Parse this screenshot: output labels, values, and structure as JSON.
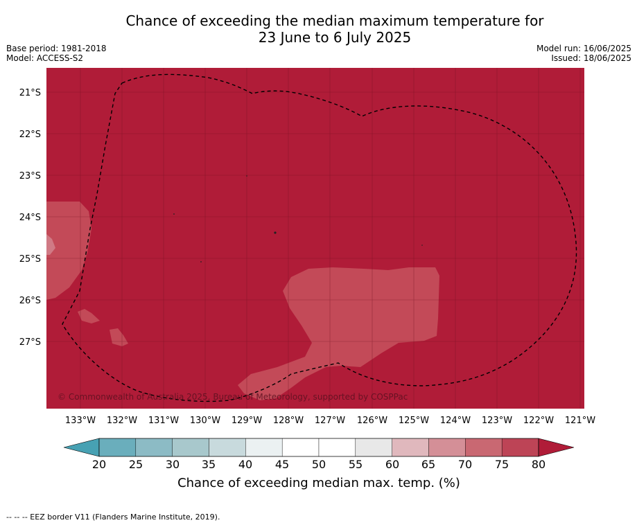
{
  "title_line1": "Chance of exceeding the median maximum temperature for",
  "title_line2": "23 June to 6 July 2025",
  "meta": {
    "base_period": "Base period: 1981-2018",
    "model": "Model: ACCESS-S2",
    "model_run": "Model run: 16/06/2025",
    "issued": "Issued: 18/06/2025"
  },
  "map": {
    "lat_labels": [
      "21°S",
      "22°S",
      "23°S",
      "24°S",
      "25°S",
      "26°S",
      "27°S"
    ],
    "lon_labels": [
      "133°W",
      "132°W",
      "131°W",
      "130°W",
      "129°W",
      "128°W",
      "127°W",
      "126°W",
      "125°W",
      "124°W",
      "123°W",
      "122°W",
      "121°W"
    ],
    "copyright": "© Commonwealth of Australia 2025, Bureau of Meteorology, supported by COSPPac",
    "dominant_color": "#b01c38",
    "patch_color": "#c34a58"
  },
  "legend": {
    "ticks": [
      "20",
      "25",
      "30",
      "35",
      "40",
      "45",
      "50",
      "55",
      "60",
      "65",
      "70",
      "75",
      "80"
    ],
    "colors": [
      "#6aaebc",
      "#8cbbc5",
      "#a8c8cc",
      "#c8dadd",
      "#ebf1f2",
      "#ffffff",
      "#ffffff",
      "#e8e8e8",
      "#e0b8bd",
      "#d48f97",
      "#c96872",
      "#bd4456"
    ],
    "low_extend_color": "#47a1b3",
    "high_extend_color": "#b01c38",
    "label": "Chance of exceeding median max. temp. (%)"
  },
  "footer": "-- -- -- EEZ border V11 (Flanders Marine Institute, 2019)."
}
